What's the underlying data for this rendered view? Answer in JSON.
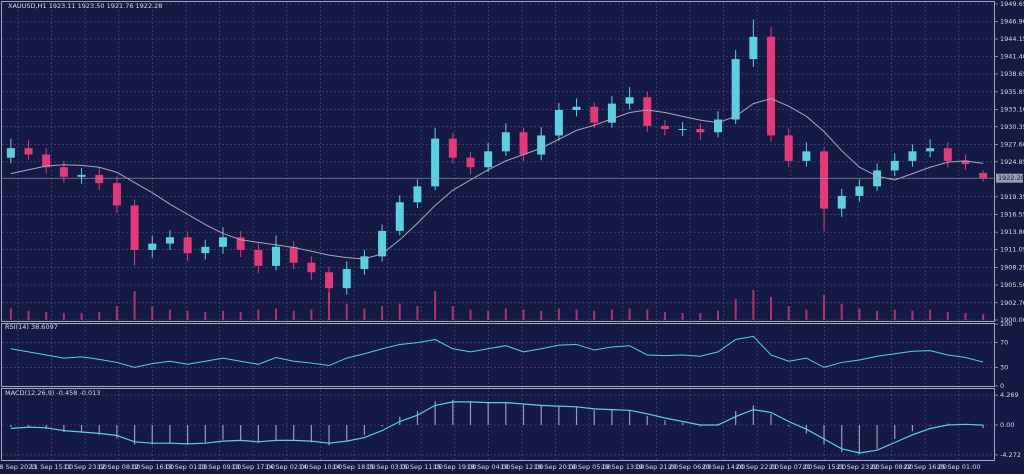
{
  "chart_data": [
    {
      "type": "candlestick",
      "title": "XAUUSD,H1  1923.11 1923.50 1921.76 1922.28",
      "bull_color": "#5cd0e0",
      "bear_color": "#e23a78",
      "ma_color": "#a8a8b8",
      "volume_color": "#b0336f",
      "grid": true,
      "ylim": [
        1900,
        1949.65
      ],
      "yticks": [
        1949.65,
        {
          "value": 1946.9,
          "label": "1946.90"
        },
        1944.15,
        {
          "value": 1941.4,
          "label": "1941.40"
        },
        1938.65,
        1935.85,
        {
          "value": 1933.1,
          "label": "1933.10"
        },
        1930.35,
        {
          "value": 1927.6,
          "label": "1927.60"
        },
        1924.85,
        1919.35,
        1916.55,
        {
          "value": 1913.8,
          "label": "1913.80"
        },
        1911.05,
        1908.25,
        {
          "value": 1905.5,
          "label": "1905.50"
        },
        {
          "value": 1902.7,
          "label": "1902.70"
        },
        {
          "value": 1900,
          "label": "1900.00"
        }
      ],
      "time_labels": [
        "8 Sep 2023",
        "11 Sep 15:00",
        "11 Sep 23:00",
        "12 Sep 08:00",
        "12 Sep 16:00",
        "13 Sep 01:00",
        "13 Sep 09:00",
        "13 Sep 17:00",
        "14 Sep 02:00",
        "14 Sep 10:00",
        "14 Sep 18:00",
        "15 Sep 03:00",
        "15 Sep 11:00",
        "15 Sep 19:00",
        "18 Sep 04:00",
        "18 Sep 12:00",
        "18 Sep 20:00",
        "19 Sep 05:00",
        "19 Sep 13:00",
        "19 Sep 21:00",
        "20 Sep 06:00",
        "20 Sep 14:00",
        "20 Sep 22:00",
        "21 Sep 07:00",
        "21 Sep 15:00",
        "21 Sep 23:00",
        "22 Sep 08:00",
        "22 Sep 16:00",
        "25 Sep 01:00"
      ],
      "open": [
        1925.5,
        1927.0,
        1926.0,
        1924.0,
        1922.5,
        1922.8,
        1921.5,
        1918.0,
        1911.0,
        1912.0,
        1913.0,
        1910.5,
        1911.5,
        1913.0,
        1911.0,
        1908.5,
        1911.5,
        1909.0,
        1907.5,
        1905.0,
        1908.0,
        1910.0,
        1914.0,
        1918.5,
        1921.0,
        1928.5,
        1925.5,
        1924.0,
        1926.5,
        1929.5,
        1926.0,
        1929.0,
        1933.0,
        1933.5,
        1931.0,
        1934.0,
        1935.0,
        1930.5,
        1930.0,
        1930.0,
        1929.5,
        1931.5,
        1941.0,
        1944.5,
        1929.0,
        1925.0,
        1926.5,
        1917.5,
        1919.5,
        1921.0,
        1923.5,
        1925.0,
        1926.5,
        1927.0,
        1925.0,
        1923.11
      ],
      "high": [
        1928.5,
        1928.2,
        1927.0,
        1925.0,
        1923.9,
        1924.0,
        1922.6,
        1918.9,
        1913.2,
        1914.1,
        1913.9,
        1912.6,
        1914.6,
        1914.0,
        1912.0,
        1913.3,
        1912.4,
        1910.0,
        1908.4,
        1909.2,
        1911.0,
        1915.0,
        1919.6,
        1922.1,
        1930.2,
        1929.4,
        1926.4,
        1927.8,
        1930.9,
        1930.2,
        1930.3,
        1934.1,
        1934.8,
        1934.2,
        1935.2,
        1936.6,
        1935.9,
        1931.4,
        1931.1,
        1930.9,
        1932.8,
        1942.4,
        1947.2,
        1946.0,
        1930.1,
        1927.9,
        1927.1,
        1920.6,
        1922.1,
        1924.6,
        1926.2,
        1927.6,
        1928.4,
        1927.9,
        1926.0,
        1923.5
      ],
      "low": [
        1924.6,
        1925.2,
        1923.0,
        1921.6,
        1921.4,
        1920.4,
        1916.8,
        1908.6,
        1909.8,
        1911.0,
        1909.3,
        1909.5,
        1910.4,
        1909.9,
        1907.4,
        1907.8,
        1908.0,
        1906.3,
        1902.6,
        1904.0,
        1907.1,
        1909.2,
        1913.3,
        1917.6,
        1920.4,
        1924.6,
        1922.9,
        1923.2,
        1925.8,
        1925.0,
        1925.1,
        1928.2,
        1932.0,
        1930.1,
        1930.2,
        1933.1,
        1929.6,
        1929.0,
        1928.9,
        1928.3,
        1928.7,
        1930.8,
        1939.8,
        1928.0,
        1924.0,
        1924.1,
        1914.0,
        1916.2,
        1918.6,
        1920.3,
        1922.6,
        1924.1,
        1925.6,
        1924.0,
        1923.6,
        1921.76
      ],
      "close": [
        1927.0,
        1926.0,
        1924.0,
        1922.5,
        1922.8,
        1921.5,
        1918.0,
        1911.0,
        1912.0,
        1913.0,
        1910.5,
        1911.5,
        1913.0,
        1911.0,
        1908.5,
        1911.5,
        1909.0,
        1907.5,
        1905.0,
        1908.0,
        1910.0,
        1914.0,
        1918.5,
        1921.0,
        1928.5,
        1925.5,
        1924.0,
        1926.5,
        1929.5,
        1926.0,
        1929.0,
        1933.0,
        1933.5,
        1931.0,
        1934.0,
        1935.0,
        1930.5,
        1930.0,
        1930.0,
        1929.5,
        1931.5,
        1941.0,
        1944.5,
        1929.0,
        1925.0,
        1926.5,
        1917.5,
        1919.5,
        1921.0,
        1923.5,
        1925.0,
        1926.5,
        1927.0,
        1925.0,
        1924.5,
        1922.28
      ],
      "ma": [
        1923.0,
        1923.6,
        1924.2,
        1924.4,
        1924.3,
        1924.0,
        1923.2,
        1921.6,
        1920.0,
        1918.2,
        1916.6,
        1915.0,
        1913.6,
        1912.6,
        1912.2,
        1911.8,
        1911.4,
        1910.8,
        1910.2,
        1909.8,
        1909.6,
        1910.4,
        1912.6,
        1915.2,
        1918.0,
        1920.4,
        1922.0,
        1923.6,
        1925.0,
        1926.0,
        1927.0,
        1928.4,
        1929.8,
        1930.6,
        1931.6,
        1932.6,
        1933.0,
        1932.6,
        1932.0,
        1931.4,
        1931.0,
        1932.0,
        1934.0,
        1934.8,
        1933.6,
        1932.0,
        1929.6,
        1926.6,
        1924.0,
        1922.6,
        1922.0,
        1923.0,
        1924.0,
        1924.8,
        1925.0,
        1924.6
      ],
      "volume": [
        10,
        8,
        7,
        6,
        6,
        7,
        12,
        25,
        12,
        9,
        8,
        7,
        8,
        7,
        9,
        10,
        8,
        9,
        24,
        14,
        10,
        12,
        14,
        12,
        25,
        12,
        9,
        8,
        10,
        9,
        8,
        10,
        9,
        8,
        9,
        10,
        9,
        7,
        6,
        6,
        8,
        18,
        26,
        20,
        12,
        9,
        22,
        14,
        10,
        8,
        9,
        8,
        9,
        7,
        6,
        5
      ]
    },
    {
      "type": "line",
      "title": "RSI(14) 38.6097",
      "color": "#5cd0e0",
      "ylim": [
        0,
        100
      ],
      "yticks": [
        100,
        70,
        30,
        0
      ],
      "values": [
        60,
        55,
        50,
        45,
        47,
        43,
        38,
        30,
        36,
        40,
        35,
        40,
        45,
        40,
        35,
        46,
        40,
        37,
        33,
        45,
        52,
        60,
        67,
        70,
        75,
        60,
        55,
        60,
        65,
        55,
        60,
        66,
        67,
        58,
        63,
        65,
        50,
        49,
        50,
        48,
        55,
        75,
        80,
        50,
        40,
        45,
        30,
        38,
        42,
        48,
        52,
        56,
        57,
        50,
        46,
        38.6097
      ]
    },
    {
      "type": "macd",
      "title": "MACD(12,26,9) -0.458 -0.013",
      "color": "#5cd0e0",
      "hist_color": "#9a9cb0",
      "ylim": [
        -5,
        5
      ],
      "yticks": [
        4.269,
        {
          "value": 0,
          "label": "0.00"
        },
        -4.272
      ],
      "histogram": [
        -0.3,
        -0.2,
        -0.6,
        -1.0,
        -1.1,
        -1.4,
        -1.9,
        -2.8,
        -2.8,
        -2.7,
        -2.8,
        -2.5,
        -2.1,
        -2.2,
        -2.6,
        -2.1,
        -2.2,
        -2.5,
        -2.9,
        -2.2,
        -1.4,
        -0.2,
        1.2,
        2.0,
        3.4,
        3.6,
        3.4,
        3.3,
        3.3,
        2.9,
        2.8,
        2.8,
        2.6,
        2.1,
        2.2,
        2.1,
        1.3,
        0.7,
        0.3,
        -0.2,
        0.2,
        2.0,
        2.8,
        1.6,
        -0.2,
        -1.2,
        -2.8,
        -3.9,
        -4.2,
        -3.4,
        -2.0,
        -0.9,
        -0.1,
        0.2,
        0.0,
        -0.458
      ],
      "signal": [
        -0.5,
        -0.3,
        -0.4,
        -0.8,
        -1.0,
        -1.2,
        -1.5,
        -2.4,
        -2.6,
        -2.6,
        -2.7,
        -2.6,
        -2.3,
        -2.2,
        -2.4,
        -2.2,
        -2.2,
        -2.3,
        -2.6,
        -2.3,
        -1.8,
        -0.8,
        0.5,
        1.4,
        2.8,
        3.3,
        3.3,
        3.2,
        3.2,
        3.0,
        2.8,
        2.7,
        2.6,
        2.3,
        2.2,
        2.1,
        1.6,
        1.0,
        0.5,
        0.0,
        0.0,
        1.2,
        2.2,
        1.8,
        0.5,
        -0.6,
        -2.0,
        -3.4,
        -4.0,
        -3.6,
        -2.5,
        -1.4,
        -0.5,
        0.0,
        0.1,
        -0.013
      ]
    }
  ]
}
